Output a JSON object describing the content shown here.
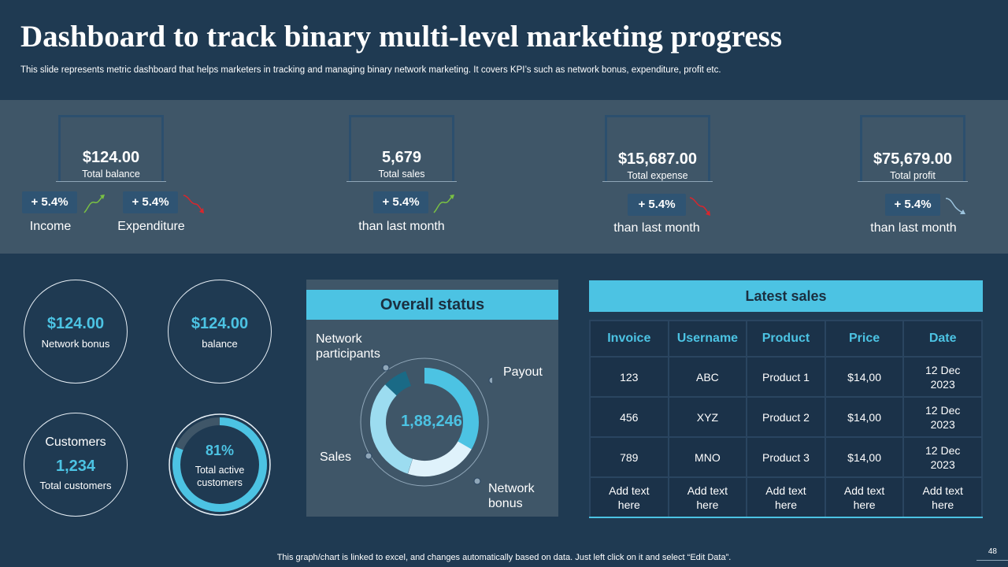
{
  "header": {
    "title": "Dashboard to track binary multi-level marketing progress",
    "subtitle": "This slide represents metric dashboard that helps marketers in tracking and managing binary network marketing. It covers KPI’s such as network bonus, expenditure, profit etc."
  },
  "kpis": {
    "balance": {
      "value": "$124.00",
      "label": "Total balance",
      "income_pill": "+ 5.4%",
      "income_caption": "Income",
      "expenditure_pill": "+ 5.4%",
      "expenditure_caption": "Expenditure"
    },
    "sales": {
      "value": "5,679",
      "label": "Total sales",
      "pill": "+ 5.4%",
      "caption": "than last month"
    },
    "expense": {
      "value": "$15,687.00",
      "label": "Total expense",
      "pill": "+ 5.4%",
      "caption": "than last month"
    },
    "profit": {
      "value": "$75,679.00",
      "label": "Total profit",
      "pill": "+ 5.4%",
      "caption": "than last month"
    }
  },
  "circles": {
    "network_bonus": {
      "value": "$124.00",
      "label": "Network bonus"
    },
    "balance": {
      "value": "$124.00",
      "label": "balance"
    },
    "customers": {
      "title": "Customers",
      "value": "1,234",
      "label": "Total customers"
    },
    "active": {
      "value": "81%",
      "label_line1": "Total active",
      "label_line2": "customers",
      "progress": 0.81
    }
  },
  "status": {
    "title": "Overall status",
    "center_value": "1,88,246",
    "labels": {
      "participants_line1": "Network",
      "participants_line2": "participants",
      "payout": "Payout",
      "sales": "Sales",
      "bonus_line1": "Network",
      "bonus_line2": "bonus"
    }
  },
  "latest_sales": {
    "title": "Latest sales",
    "columns": [
      "Invoice",
      "Username",
      "Product",
      "Price",
      "Date"
    ],
    "rows": [
      [
        "123",
        "ABC",
        "Product 1",
        "$14,00",
        "12 Dec 2023"
      ],
      [
        "456",
        "XYZ",
        "Product 2",
        "$14,00",
        "12 Dec 2023"
      ],
      [
        "789",
        "MNO",
        "Product 3",
        "$14,00",
        "12 Dec 2023"
      ],
      [
        "Add text here",
        "Add text here",
        "Add text here",
        "Add text here",
        "Add text here"
      ]
    ]
  },
  "footer": {
    "note": "This graph/chart is linked to excel, and changes automatically based on data. Just left click on it and select “Edit Data”.",
    "page_number": "48"
  },
  "colors": {
    "background": "#1f3a52",
    "band": "#3f5668",
    "accent": "#4cc3e3",
    "pill": "#2f5473",
    "arrow_up": "#7ac143",
    "arrow_down": "#d9262c",
    "arrow_neutral": "#9cc3dd"
  }
}
